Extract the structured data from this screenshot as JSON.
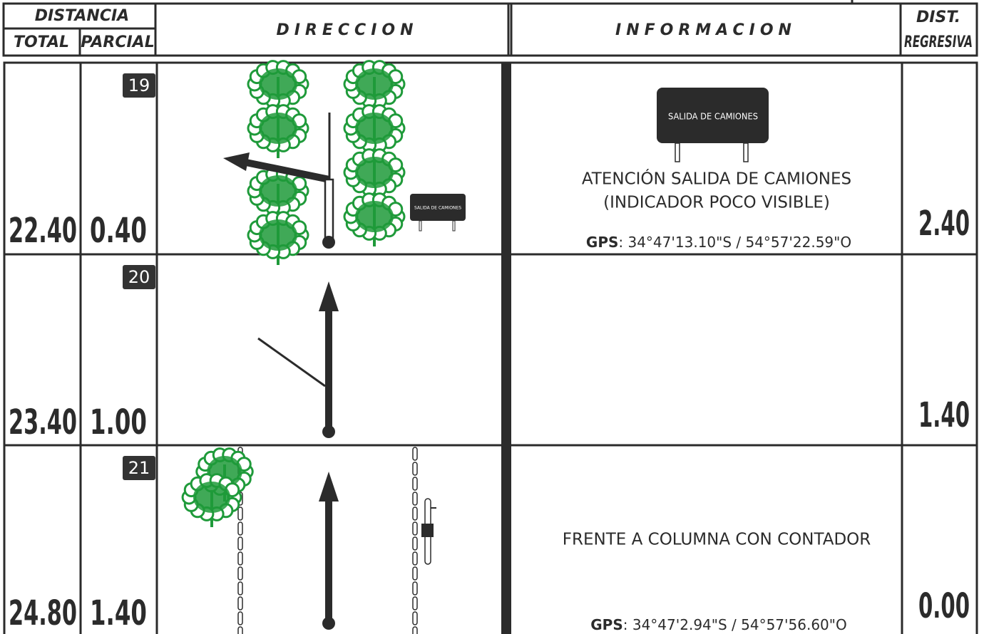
{
  "header": {
    "distancia": "DISTANCIA",
    "total": "TOTAL",
    "parcial": "PARCIAL",
    "direccion": "DIRECCION",
    "informacion": "INFORMACION",
    "dist_regresiva": [
      "DIST.",
      "REGRESIVA"
    ]
  },
  "rows": [
    {
      "number": "19",
      "total": "22.40",
      "parcial": "0.40",
      "direction_sign": "SALIDA DE CAMIONES",
      "info_sign": "SALIDA DE CAMIONES",
      "info": [
        "ATENCIÓN SALIDA DE CAMIONES",
        "(INDICADOR POCO VISIBLE)"
      ],
      "gps_label": "GPS",
      "gps": ": 34°47'13.10\"S / 54°57'22.59\"O",
      "regresiva": "2.40"
    },
    {
      "number": "20",
      "total": "23.40",
      "parcial": "1.00",
      "regresiva": "1.40"
    },
    {
      "number": "21",
      "total": "24.80",
      "parcial": "1.40",
      "info": [
        "FRENTE A COLUMNA CON CONTADOR"
      ],
      "gps_label": "GPS",
      "gps": ": 34°47'2.94\"S / 54°57'56.60\"O",
      "regresiva": "0.00"
    }
  ]
}
